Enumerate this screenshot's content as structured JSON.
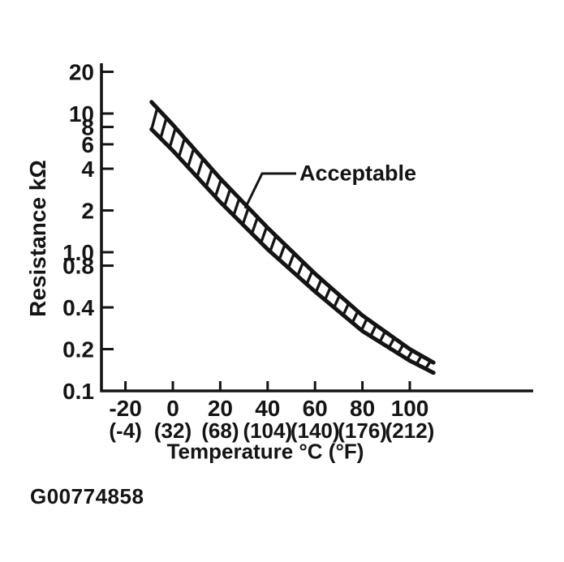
{
  "figure": {
    "caption": "G00774858",
    "background": "#ffffff",
    "ink_color": "#141414"
  },
  "chart_data": {
    "type": "line",
    "title": "",
    "xlabel": "Temperature °C (°F)",
    "ylabel": "Resistance kΩ",
    "x_scale": "linear",
    "y_scale": "log",
    "xlim": [
      -20,
      152
    ],
    "ylim": [
      0.1,
      20
    ],
    "grid": false,
    "band_label": "Acceptable",
    "band_style": "hatched",
    "x_tick_values": [
      -20,
      0,
      20,
      40,
      60,
      80,
      100
    ],
    "x_tick_labels_c": [
      "-20",
      "0",
      "20",
      "40",
      "60",
      "80",
      "100"
    ],
    "x_tick_labels_f": [
      "(-4)",
      "(32)",
      "(68)",
      "(104)",
      "(140)",
      "(176)",
      "(212)"
    ],
    "y_tick_values": [
      20,
      10,
      8,
      6,
      4,
      2,
      1.0,
      0.8,
      0.4,
      0.2,
      0.1
    ],
    "y_tick_labels": [
      "20",
      "10",
      "8",
      "6",
      "4",
      "2",
      "1.0",
      "0.8",
      "0.4",
      "0.2",
      "0.1"
    ],
    "series": [
      {
        "name": "acceptable-upper-limit",
        "x": [
          -9,
          0,
          20,
          40,
          60,
          80,
          100,
          110
        ],
        "y": [
          12.1,
          8.3,
          3.4,
          1.5,
          0.7,
          0.35,
          0.2,
          0.16
        ]
      },
      {
        "name": "acceptable-lower-limit",
        "x": [
          -9,
          0,
          20,
          40,
          60,
          80,
          100,
          110
        ],
        "y": [
          7.7,
          5.4,
          2.3,
          1.05,
          0.52,
          0.27,
          0.165,
          0.135
        ]
      }
    ]
  }
}
